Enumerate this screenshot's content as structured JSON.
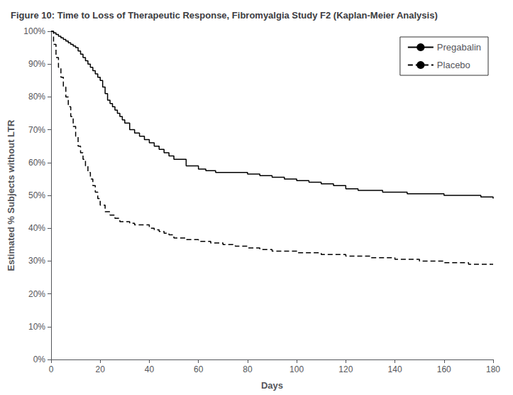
{
  "chart_data": {
    "type": "line",
    "title": "Figure 10: Time to Loss of Therapeutic Response, Fibromyalgia Study F2 (Kaplan-Meier Analysis)",
    "x_label": "Days",
    "y_label": "Estimated % Subjects without LTR",
    "xlim": [
      0,
      180
    ],
    "ylim": [
      0,
      100
    ],
    "xticks": [
      0,
      20,
      40,
      60,
      80,
      100,
      120,
      140,
      160,
      180
    ],
    "yticks": [
      {
        "value": 0,
        "label": "0%"
      },
      {
        "value": 10,
        "label": "10%"
      },
      {
        "value": 20,
        "label": "20%"
      },
      {
        "value": 30,
        "label": "30%"
      },
      {
        "value": 40,
        "label": "40%"
      },
      {
        "value": 50,
        "label": "50%"
      },
      {
        "value": 60,
        "label": "60%"
      },
      {
        "value": 70,
        "label": "70%"
      },
      {
        "value": 80,
        "label": "80%"
      },
      {
        "value": 90,
        "label": "90%"
      },
      {
        "value": 100,
        "label": "100%"
      }
    ],
    "grid": false,
    "legend": "upper right",
    "series": [
      {
        "name": "Pregabalin",
        "color": "#000000",
        "line_style": "solid",
        "x": [
          0,
          1,
          2,
          3,
          4,
          5,
          6,
          7,
          8,
          9,
          10,
          11,
          12,
          13,
          14,
          15,
          16,
          17,
          18,
          19,
          20,
          21,
          22,
          23,
          24,
          25,
          26,
          27,
          28,
          29,
          30,
          32,
          34,
          36,
          38,
          40,
          42,
          44,
          46,
          48,
          50,
          55,
          60,
          63,
          67,
          70,
          75,
          80,
          85,
          90,
          95,
          100,
          105,
          110,
          115,
          120,
          125,
          130,
          135,
          140,
          145,
          150,
          155,
          160,
          165,
          170,
          175,
          180
        ],
        "values": [
          100,
          99.5,
          99,
          98.5,
          98,
          97.5,
          97,
          96.5,
          96,
          95.5,
          95,
          94,
          93,
          92,
          91,
          90,
          89,
          88,
          87,
          86,
          85,
          83,
          81,
          79,
          78,
          77,
          76,
          75,
          74,
          73,
          72,
          70,
          69,
          68,
          67,
          66,
          65,
          64,
          63,
          62,
          61,
          59,
          58,
          57.5,
          57,
          57,
          57,
          56.5,
          56,
          55.5,
          55,
          54.5,
          54,
          53.5,
          53,
          52,
          51.5,
          51.5,
          51,
          51,
          50.5,
          50.5,
          50.5,
          50,
          50,
          50,
          49.5,
          49
        ]
      },
      {
        "name": "Placebo",
        "color": "#000000",
        "line_style": "dashed",
        "x": [
          0,
          1,
          2,
          3,
          4,
          5,
          6,
          7,
          8,
          9,
          10,
          11,
          12,
          13,
          14,
          15,
          16,
          17,
          18,
          19,
          20,
          22,
          24,
          26,
          28,
          30,
          32,
          34,
          36,
          38,
          40,
          42,
          44,
          46,
          48,
          50,
          55,
          60,
          65,
          70,
          75,
          80,
          85,
          90,
          95,
          100,
          110,
          120,
          130,
          140,
          150,
          160,
          170,
          180
        ],
        "values": [
          100,
          96,
          92,
          89,
          86,
          83,
          80,
          77,
          74,
          71,
          68,
          65,
          63,
          61,
          59,
          57,
          55,
          53,
          51,
          49,
          47,
          45,
          44,
          43,
          42,
          42,
          41.5,
          41,
          41,
          41,
          40,
          39.5,
          39,
          38.5,
          38,
          37,
          36.5,
          36,
          35.5,
          35,
          34.5,
          34,
          33.5,
          33,
          33,
          32.5,
          32,
          31.5,
          31,
          30.5,
          30,
          29.5,
          29,
          29
        ]
      }
    ]
  }
}
